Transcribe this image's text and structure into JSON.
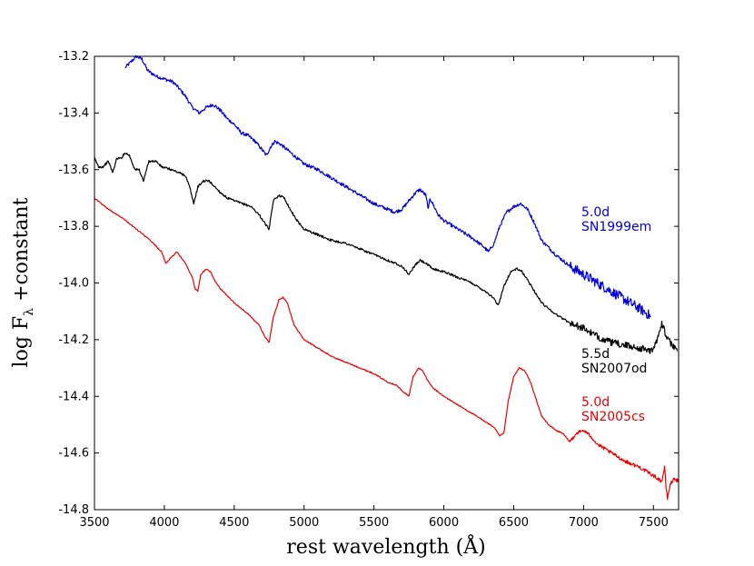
{
  "chart_data": {
    "type": "line",
    "title": "",
    "xlabel": "rest wavelength (Å)",
    "ylabel": "log F",
    "ylabel_subscript": "λ",
    "ylabel_suffix": " +constant",
    "xlim": [
      3500,
      7680
    ],
    "ylim": [
      -14.8,
      -13.2
    ],
    "xticks": [
      3500,
      4000,
      4500,
      5000,
      5500,
      6000,
      6500,
      7000,
      7500
    ],
    "yticks": [
      -13.2,
      -13.4,
      -13.6,
      -13.8,
      -14.0,
      -14.2,
      -14.4,
      -14.6,
      -14.8
    ],
    "ytick_labels": [
      "-13.2",
      "-13.4",
      "-13.6",
      "-13.8",
      "-14.0",
      "-14.2",
      "-14.4",
      "-14.6",
      "-14.8"
    ],
    "grid": false,
    "series": [
      {
        "name": "SN1999em",
        "epoch": "5.0d",
        "color": "#0000dd",
        "noise": 0.006,
        "x": [
          3720,
          3760,
          3800,
          3840,
          3880,
          3940,
          4000,
          4060,
          4100,
          4150,
          4200,
          4250,
          4300,
          4350,
          4400,
          4450,
          4500,
          4550,
          4600,
          4650,
          4700,
          4730,
          4760,
          4790,
          4830,
          4880,
          4950,
          5000,
          5100,
          5200,
          5300,
          5400,
          5500,
          5600,
          5650,
          5700,
          5750,
          5800,
          5830,
          5870,
          5890,
          5900,
          5920,
          5960,
          6000,
          6100,
          6200,
          6280,
          6320,
          6360,
          6400,
          6450,
          6500,
          6550,
          6600,
          6650,
          6700,
          6800,
          6900,
          7000,
          7100,
          7200,
          7300,
          7400,
          7460,
          7480
        ],
        "y": [
          -13.24,
          -13.22,
          -13.2,
          -13.21,
          -13.25,
          -13.27,
          -13.28,
          -13.29,
          -13.31,
          -13.34,
          -13.38,
          -13.4,
          -13.38,
          -13.37,
          -13.39,
          -13.42,
          -13.44,
          -13.47,
          -13.48,
          -13.5,
          -13.53,
          -13.55,
          -13.52,
          -13.5,
          -13.51,
          -13.53,
          -13.56,
          -13.58,
          -13.6,
          -13.63,
          -13.66,
          -13.69,
          -13.72,
          -13.74,
          -13.75,
          -13.74,
          -13.71,
          -13.68,
          -13.67,
          -13.69,
          -13.74,
          -13.7,
          -13.72,
          -13.76,
          -13.78,
          -13.81,
          -13.84,
          -13.87,
          -13.89,
          -13.86,
          -13.8,
          -13.75,
          -13.73,
          -13.72,
          -13.74,
          -13.79,
          -13.85,
          -13.9,
          -13.94,
          -13.97,
          -14.0,
          -14.03,
          -14.06,
          -14.09,
          -14.11,
          -14.12
        ]
      },
      {
        "name": "SN2007od",
        "epoch": "5.5d",
        "color": "#000000",
        "noise": 0.004,
        "x": [
          3500,
          3530,
          3560,
          3600,
          3630,
          3660,
          3690,
          3720,
          3750,
          3790,
          3820,
          3850,
          3890,
          3940,
          3980,
          4050,
          4100,
          4150,
          4180,
          4210,
          4240,
          4280,
          4320,
          4360,
          4400,
          4450,
          4500,
          4560,
          4620,
          4680,
          4720,
          4750,
          4780,
          4820,
          4860,
          4900,
          4950,
          5000,
          5100,
          5200,
          5300,
          5400,
          5500,
          5600,
          5650,
          5700,
          5750,
          5790,
          5830,
          5870,
          5920,
          6000,
          6100,
          6200,
          6300,
          6350,
          6390,
          6430,
          6480,
          6520,
          6560,
          6600,
          6650,
          6700,
          6800,
          6900,
          7000,
          7100,
          7200,
          7300,
          7400,
          7500,
          7560,
          7600,
          7640,
          7670
        ],
        "y": [
          -13.56,
          -13.59,
          -13.59,
          -13.57,
          -13.61,
          -13.56,
          -13.56,
          -13.54,
          -13.55,
          -13.6,
          -13.6,
          -13.64,
          -13.57,
          -13.57,
          -13.59,
          -13.6,
          -13.61,
          -13.62,
          -13.66,
          -13.72,
          -13.66,
          -13.64,
          -13.64,
          -13.66,
          -13.68,
          -13.7,
          -13.71,
          -13.72,
          -13.73,
          -13.76,
          -13.79,
          -13.81,
          -13.71,
          -13.69,
          -13.7,
          -13.74,
          -13.78,
          -13.81,
          -13.83,
          -13.85,
          -13.86,
          -13.88,
          -13.9,
          -13.92,
          -13.93,
          -13.94,
          -13.97,
          -13.94,
          -13.92,
          -13.93,
          -13.95,
          -13.96,
          -13.98,
          -14.0,
          -14.03,
          -14.05,
          -14.08,
          -14.01,
          -13.96,
          -13.95,
          -13.96,
          -13.99,
          -14.03,
          -14.07,
          -14.11,
          -14.14,
          -14.16,
          -14.19,
          -14.21,
          -14.22,
          -14.23,
          -14.24,
          -14.14,
          -14.2,
          -14.22,
          -14.24
        ]
      },
      {
        "name": "SN2005cs",
        "epoch": "5.0d",
        "color": "#ee0000",
        "noise": 0.002,
        "x": [
          3500,
          3550,
          3600,
          3700,
          3800,
          3900,
          3980,
          4010,
          4050,
          4090,
          4150,
          4200,
          4220,
          4240,
          4260,
          4300,
          4330,
          4360,
          4400,
          4500,
          4600,
          4680,
          4720,
          4750,
          4780,
          4820,
          4850,
          4880,
          4930,
          5000,
          5100,
          5200,
          5300,
          5400,
          5500,
          5600,
          5660,
          5700,
          5750,
          5780,
          5820,
          5850,
          5880,
          5920,
          6000,
          6100,
          6200,
          6300,
          6360,
          6400,
          6430,
          6460,
          6500,
          6540,
          6580,
          6620,
          6660,
          6700,
          6750,
          6800,
          6850,
          6900,
          6950,
          7000,
          7050,
          7100,
          7200,
          7300,
          7400,
          7500,
          7560,
          7580,
          7590,
          7600,
          7620,
          7650,
          7680
        ],
        "y": [
          -13.7,
          -13.72,
          -13.74,
          -13.77,
          -13.81,
          -13.85,
          -13.89,
          -13.93,
          -13.91,
          -13.89,
          -13.93,
          -13.98,
          -14.02,
          -14.03,
          -13.97,
          -13.95,
          -13.96,
          -13.99,
          -14.02,
          -14.07,
          -14.11,
          -14.15,
          -14.19,
          -14.21,
          -14.12,
          -14.06,
          -14.05,
          -14.07,
          -14.15,
          -14.2,
          -14.23,
          -14.26,
          -14.28,
          -14.3,
          -14.32,
          -14.35,
          -14.36,
          -14.38,
          -14.4,
          -14.33,
          -14.3,
          -14.31,
          -14.34,
          -14.37,
          -14.4,
          -14.43,
          -14.46,
          -14.49,
          -14.51,
          -14.54,
          -14.53,
          -14.42,
          -14.33,
          -14.3,
          -14.31,
          -14.35,
          -14.41,
          -14.47,
          -14.5,
          -14.52,
          -14.53,
          -14.56,
          -14.53,
          -14.52,
          -14.54,
          -14.57,
          -14.6,
          -14.63,
          -14.65,
          -14.68,
          -14.7,
          -14.65,
          -14.72,
          -14.76,
          -14.71,
          -14.69,
          -14.7
        ]
      }
    ],
    "annotations": [
      {
        "epoch": "5.0d",
        "name": "SN1999em",
        "color": "#0000dd"
      },
      {
        "epoch": "5.5d",
        "name": "SN2007od",
        "color": "#000000"
      },
      {
        "epoch": "5.0d",
        "name": "SN2005cs",
        "color": "#ee0000"
      }
    ]
  }
}
